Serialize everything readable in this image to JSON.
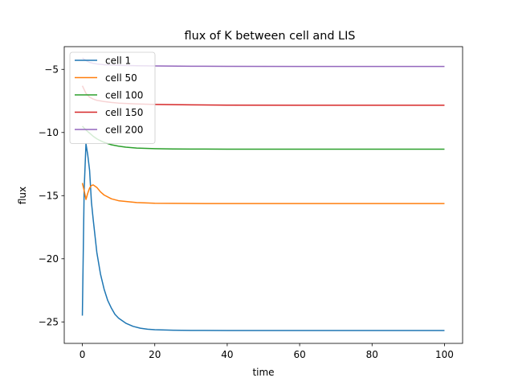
{
  "chart_data": {
    "type": "line",
    "title": "flux of K between cell and LIS",
    "xlabel": "time",
    "ylabel": "flux",
    "xlim": [
      -5,
      105
    ],
    "ylim": [
      -26.7,
      -3.2
    ],
    "xticks": [
      0,
      20,
      40,
      60,
      80,
      100
    ],
    "yticks": [
      -25,
      -20,
      -15,
      -10,
      -5
    ],
    "grid": false,
    "legend_position": "top-left",
    "series": [
      {
        "name": "cell 1",
        "color": "#1f77b4",
        "x": [
          0,
          0.5,
          1,
          1.5,
          2,
          2.5,
          3,
          4,
          5,
          6,
          7,
          8,
          9,
          10,
          12,
          14,
          16,
          18,
          20,
          25,
          30,
          40,
          50,
          60,
          70,
          80,
          90,
          100
        ],
        "y": [
          -24.5,
          -14.5,
          -10.9,
          -11.8,
          -13.0,
          -15.5,
          -16.9,
          -19.5,
          -21.2,
          -22.4,
          -23.3,
          -23.9,
          -24.4,
          -24.7,
          -25.1,
          -25.35,
          -25.5,
          -25.58,
          -25.62,
          -25.66,
          -25.67,
          -25.68,
          -25.68,
          -25.68,
          -25.68,
          -25.68,
          -25.68,
          -25.68
        ]
      },
      {
        "name": "cell 50",
        "color": "#ff7f0e",
        "x": [
          0,
          0.5,
          1,
          1.5,
          2,
          2.5,
          3,
          4,
          5,
          6,
          8,
          10,
          15,
          20,
          30,
          40,
          60,
          80,
          100
        ],
        "y": [
          -14.0,
          -14.6,
          -15.3,
          -14.8,
          -14.4,
          -14.2,
          -14.15,
          -14.35,
          -14.7,
          -14.95,
          -15.25,
          -15.4,
          -15.55,
          -15.6,
          -15.62,
          -15.63,
          -15.63,
          -15.63,
          -15.63
        ]
      },
      {
        "name": "cell 100",
        "color": "#2ca02c",
        "x": [
          0,
          1,
          2,
          3,
          4,
          5,
          6,
          8,
          10,
          12,
          15,
          20,
          25,
          30,
          40,
          50,
          60,
          80,
          100
        ],
        "y": [
          -9.5,
          -9.8,
          -10.05,
          -10.3,
          -10.5,
          -10.65,
          -10.78,
          -10.97,
          -11.08,
          -11.16,
          -11.23,
          -11.28,
          -11.3,
          -11.31,
          -11.32,
          -11.32,
          -11.32,
          -11.32,
          -11.32
        ]
      },
      {
        "name": "cell 150",
        "color": "#d62728",
        "x": [
          0,
          1,
          2,
          3,
          4,
          5,
          6,
          8,
          10,
          15,
          20,
          30,
          40,
          60,
          80,
          100
        ],
        "y": [
          -6.3,
          -6.9,
          -7.2,
          -7.35,
          -7.45,
          -7.5,
          -7.55,
          -7.62,
          -7.67,
          -7.74,
          -7.78,
          -7.81,
          -7.83,
          -7.84,
          -7.84,
          -7.84
        ]
      },
      {
        "name": "cell 200",
        "color": "#9467bd",
        "x": [
          0,
          1,
          2,
          3,
          4,
          5,
          6,
          8,
          10,
          15,
          20,
          30,
          40,
          60,
          80,
          100
        ],
        "y": [
          -4.1,
          -4.3,
          -4.45,
          -4.52,
          -4.57,
          -4.6,
          -4.63,
          -4.66,
          -4.68,
          -4.71,
          -4.73,
          -4.75,
          -4.76,
          -4.77,
          -4.77,
          -4.77
        ]
      }
    ]
  }
}
